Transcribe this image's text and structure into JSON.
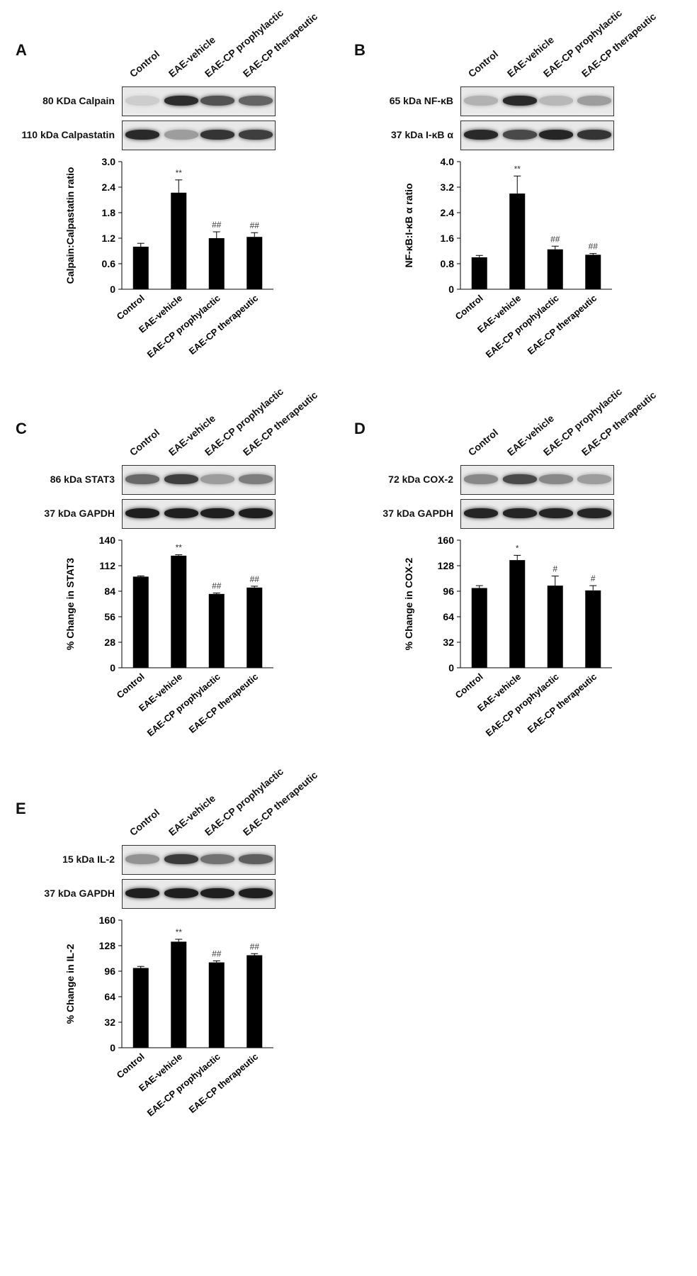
{
  "lanes": [
    "Control",
    "EAE-vehicle",
    "EAE-CP prophylactic",
    "EAE-CP therapeutic"
  ],
  "panels": [
    {
      "letter": "A",
      "blots": [
        {
          "label": "80 KDa Calpain",
          "bands": [
            0.12,
            0.88,
            0.7,
            0.62
          ]
        },
        {
          "label": "110 kDa Calpastatin",
          "bands": [
            0.9,
            0.35,
            0.85,
            0.8
          ]
        }
      ],
      "chart_data": {
        "type": "bar",
        "categories": [
          "Control",
          "EAE-vehicle",
          "EAE-CP prophylactic",
          "EAE-CP therapeutic"
        ],
        "values": [
          1.0,
          2.27,
          1.2,
          1.23
        ],
        "errors": [
          0.08,
          0.3,
          0.15,
          0.1
        ],
        "annotations": [
          "",
          "**",
          "##",
          "##"
        ],
        "ylabel": "Calpain:Calpastatin ratio",
        "ylim": [
          0,
          3.0
        ],
        "yticks": [
          "0",
          "0.6",
          "1.2",
          "1.8",
          "2.4",
          "3.0"
        ]
      }
    },
    {
      "letter": "B",
      "blots": [
        {
          "label": "65 kDa NF-κB",
          "bands": [
            0.25,
            0.9,
            0.22,
            0.35
          ]
        },
        {
          "label": "37 kDa I-κB α",
          "bands": [
            0.9,
            0.75,
            0.92,
            0.85
          ]
        }
      ],
      "chart_data": {
        "type": "bar",
        "categories": [
          "Control",
          "EAE-vehicle",
          "EAE-CP prophylactic",
          "EAE-CP therapeutic"
        ],
        "values": [
          1.0,
          3.0,
          1.25,
          1.08
        ],
        "errors": [
          0.06,
          0.55,
          0.1,
          0.04
        ],
        "annotations": [
          "",
          "**",
          "##",
          "##"
        ],
        "ylabel": "NF-κB:I-κB α ratio",
        "ylim": [
          0,
          4.0
        ],
        "yticks": [
          "0",
          "0.8",
          "1.6",
          "2.4",
          "3.2",
          "4.0"
        ]
      }
    },
    {
      "letter": "C",
      "blots": [
        {
          "label": "86 kDa STAT3",
          "bands": [
            0.6,
            0.8,
            0.35,
            0.5
          ]
        },
        {
          "label": "37 kDa GAPDH",
          "bands": [
            0.95,
            0.95,
            0.95,
            0.95
          ]
        }
      ],
      "chart_data": {
        "type": "bar",
        "categories": [
          "Control",
          "EAE-vehicle",
          "EAE-CP prophylactic",
          "EAE-CP therapeutic"
        ],
        "values": [
          100,
          123,
          81,
          88
        ],
        "errors": [
          0.8,
          1.0,
          1.0,
          1.5
        ],
        "annotations": [
          "",
          "**",
          "##",
          "##"
        ],
        "ylabel": "% Change in STAT3",
        "ylim": [
          0,
          140
        ],
        "yticks": [
          "0",
          "28",
          "56",
          "84",
          "112",
          "140"
        ]
      }
    },
    {
      "letter": "D",
      "blots": [
        {
          "label": "72 kDa COX-2",
          "bands": [
            0.45,
            0.75,
            0.45,
            0.35
          ]
        },
        {
          "label": "37 kDa GAPDH",
          "bands": [
            0.92,
            0.92,
            0.92,
            0.92
          ]
        }
      ],
      "chart_data": {
        "type": "bar",
        "categories": [
          "Control",
          "EAE-vehicle",
          "EAE-CP prophylactic",
          "EAE-CP therapeutic"
        ],
        "values": [
          100,
          135,
          103,
          97
        ],
        "errors": [
          3,
          6,
          12,
          6
        ],
        "annotations": [
          "",
          "*",
          "#",
          "#"
        ],
        "ylabel": "% Change in COX-2",
        "ylim": [
          0,
          160
        ],
        "yticks": [
          "0",
          "32",
          "64",
          "96",
          "128",
          "160"
        ]
      }
    },
    {
      "letter": "E",
      "blots": [
        {
          "label": "15 kDa IL-2",
          "bands": [
            0.4,
            0.82,
            0.55,
            0.65
          ]
        },
        {
          "label": "37 kDa GAPDH",
          "bands": [
            0.95,
            0.95,
            0.95,
            0.95
          ]
        }
      ],
      "chart_data": {
        "type": "bar",
        "categories": [
          "Control",
          "EAE-vehicle",
          "EAE-CP prophylactic",
          "EAE-CP therapeutic"
        ],
        "values": [
          100,
          133,
          107,
          116
        ],
        "errors": [
          2,
          3,
          2,
          2
        ],
        "annotations": [
          "",
          "**",
          "##",
          "##"
        ],
        "ylabel": "% Change in IL-2",
        "ylim": [
          0,
          160
        ],
        "yticks": [
          "0",
          "32",
          "64",
          "96",
          "128",
          "160"
        ]
      }
    }
  ]
}
